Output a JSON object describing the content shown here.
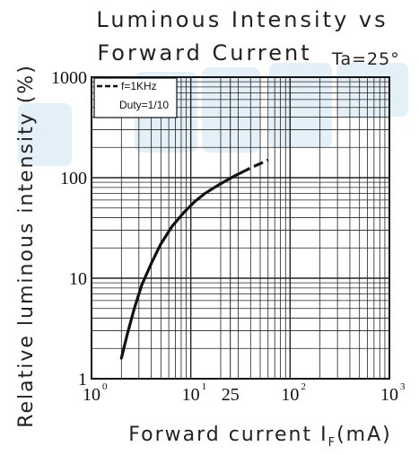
{
  "chart_data": {
    "type": "line",
    "title_line1": "Luminous Intensity vs",
    "title_line2": "Forward Current",
    "condition": "Ta=25°",
    "xlabel_prefix": "Forward current I",
    "xlabel_sub": "F",
    "xlabel_suffix": "(mA)",
    "ylabel": "Relative luminous intensity (%)",
    "x_scale": "log",
    "y_scale": "log",
    "xlim": [
      1,
      1000
    ],
    "ylim": [
      1,
      1000
    ],
    "grid": true,
    "x_ticks": [
      {
        "base": "10",
        "exp": "0",
        "value": 1
      },
      {
        "base": "10",
        "exp": "1",
        "value": 10
      },
      {
        "base": "25",
        "exp": "",
        "value": 25
      },
      {
        "base": "10",
        "exp": "2",
        "value": 100
      },
      {
        "base": "10",
        "exp": "3",
        "value": 1000
      }
    ],
    "y_ticks": [
      {
        "label": "1",
        "value": 1
      },
      {
        "label": "10",
        "value": 10
      },
      {
        "label": "100",
        "value": 100
      },
      {
        "label": "1000",
        "value": 1000
      }
    ],
    "legend": {
      "position": "top-left",
      "line1": "f=1KHz",
      "line2": "Duty=1/10"
    },
    "series": [
      {
        "style": "solid",
        "color": "#111111",
        "x": [
          2.0,
          2.3,
          2.7,
          3.2,
          4.0,
          5.0,
          6.5,
          8.5,
          11,
          14,
          18,
          22,
          27,
          32
        ],
        "y": [
          1.6,
          2.8,
          5.0,
          8.5,
          14,
          22,
          33,
          45,
          58,
          70,
          82,
          92,
          103,
          112
        ]
      },
      {
        "style": "dashed",
        "color": "#111111",
        "x": [
          32,
          40,
          50,
          60
        ],
        "y": [
          112,
          125,
          138,
          150
        ]
      }
    ]
  }
}
